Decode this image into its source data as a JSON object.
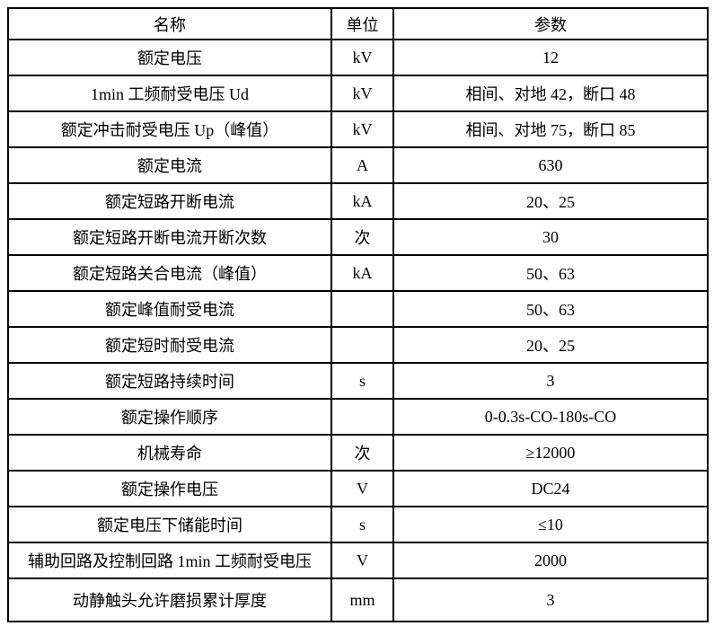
{
  "table": {
    "header": {
      "name": "名称",
      "unit": "单位",
      "value": "参数"
    },
    "rows": [
      {
        "name": "额定电压",
        "unit": "kV",
        "value": "12"
      },
      {
        "name": "1min 工频耐受电压 Ud",
        "unit": "kV",
        "value": "相间、对地 42，断口 48"
      },
      {
        "name": "额定冲击耐受电压 Up（峰值）",
        "unit": "kV",
        "value": "相间、对地 75，断口 85"
      },
      {
        "name": "额定电流",
        "unit": "A",
        "value": "630"
      },
      {
        "name": "额定短路开断电流",
        "unit": "kA",
        "value": "20、25"
      },
      {
        "name": "额定短路开断电流开断次数",
        "unit": "次",
        "value": "30"
      },
      {
        "name": "额定短路关合电流（峰值）",
        "unit": "kA",
        "value": "50、63"
      },
      {
        "name": "额定峰值耐受电流",
        "unit": "",
        "value": "50、63"
      },
      {
        "name": "额定短时耐受电流",
        "unit": "",
        "value": "20、25"
      },
      {
        "name": "额定短路持续时间",
        "unit": "s",
        "value": "3"
      },
      {
        "name": "额定操作顺序",
        "unit": "",
        "value": "0-0.3s-CO-180s-CO"
      },
      {
        "name": "机械寿命",
        "unit": "次",
        "value": "≥12000"
      },
      {
        "name": "额定操作电压",
        "unit": "V",
        "value": "DC24"
      },
      {
        "name": "额定电压下储能时间",
        "unit": "s",
        "value": "≤10"
      },
      {
        "name": "辅助回路及控制回路 1min 工频耐受电压",
        "unit": "V",
        "value": "2000"
      },
      {
        "name": "动静触头允许磨损累计厚度",
        "unit": "mm",
        "value": "3"
      }
    ],
    "colors": {
      "border": "#000000",
      "text": "#000000",
      "background": "#ffffff"
    }
  }
}
